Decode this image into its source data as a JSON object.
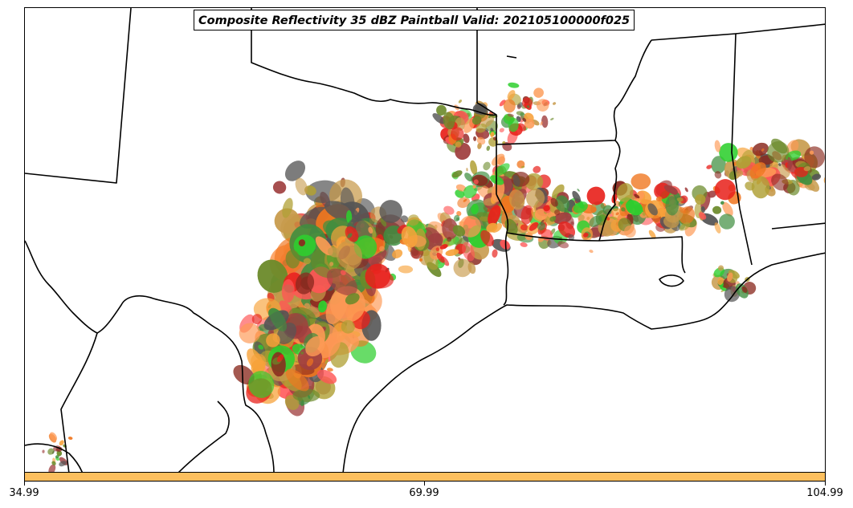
{
  "title": "Composite Reflectivity 35 dBZ Paintball Valid: 202105100000f025",
  "colorbar": {
    "color": "#fcbf5e",
    "ticks": [
      "34.99",
      "69.99",
      "104.99"
    ]
  },
  "colors": {
    "member_palette": [
      "#e8211b",
      "#f0761f",
      "#f7a23a",
      "#fd9a55",
      "#ff5555",
      "#8a2a1f",
      "#a04040",
      "#b0a035",
      "#6b8a2a",
      "#3f8e3f",
      "#2ecf2e",
      "#555555",
      "#c79a4a"
    ],
    "boundaries": "#000000",
    "background": "#ffffff"
  }
}
